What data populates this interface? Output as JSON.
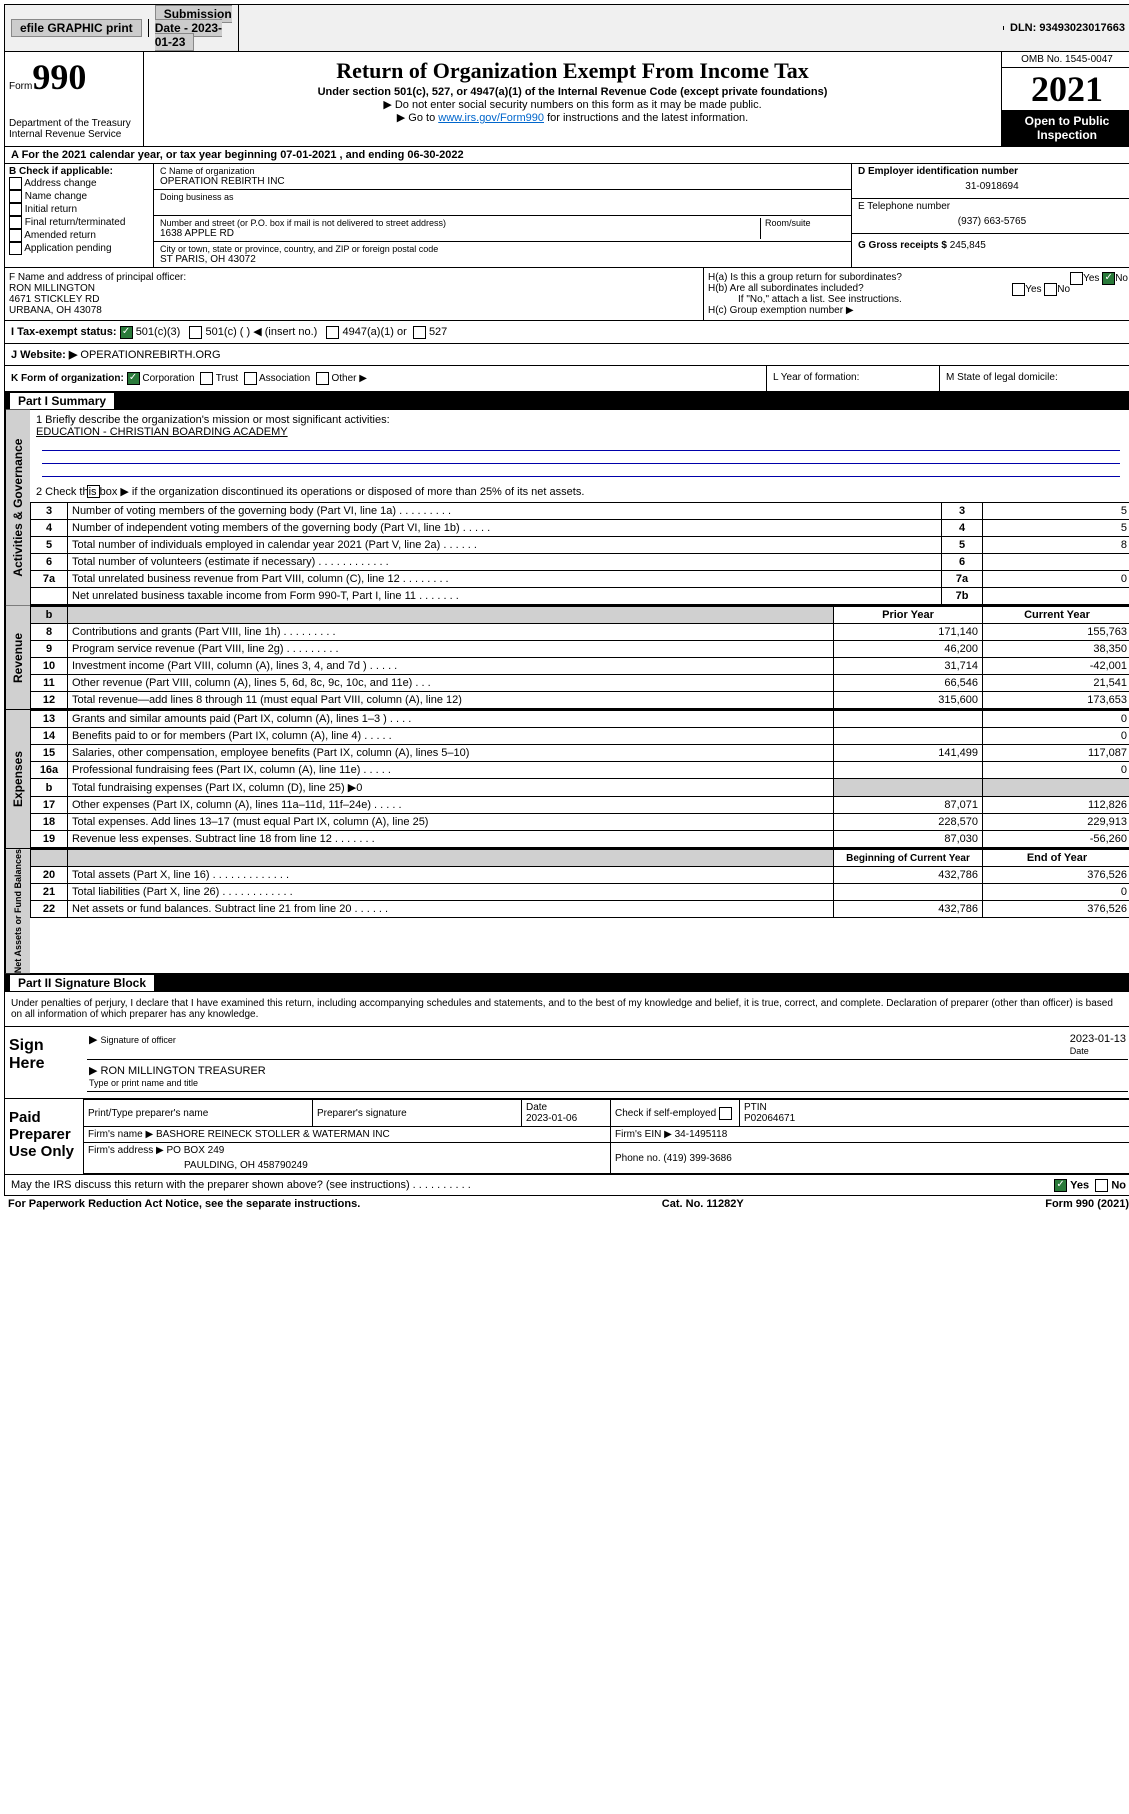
{
  "topbar": {
    "efile": "efile GRAPHIC print",
    "submission_label": "Submission Date - 2023-01-23",
    "dln": "DLN: 93493023017663"
  },
  "header": {
    "form_prefix": "Form",
    "form_number": "990",
    "dept": "Department of the Treasury",
    "irs": "Internal Revenue Service",
    "title": "Return of Organization Exempt From Income Tax",
    "subtitle": "Under section 501(c), 527, or 4947(a)(1) of the Internal Revenue Code (except private foundations)",
    "note1": "▶ Do not enter social security numbers on this form as it may be made public.",
    "note2_pre": "▶ Go to ",
    "note2_link": "www.irs.gov/Form990",
    "note2_post": " for instructions and the latest information.",
    "omb": "OMB No. 1545-0047",
    "year": "2021",
    "open": "Open to Public Inspection"
  },
  "line_a": "A For the 2021 calendar year, or tax year beginning 07-01-2021  , and ending 06-30-2022",
  "col_b": {
    "heading": "B Check if applicable:",
    "items": [
      "Address change",
      "Name change",
      "Initial return",
      "Final return/terminated",
      "Amended return",
      "Application pending"
    ]
  },
  "col_c": {
    "name_label": "C Name of organization",
    "name": "OPERATION REBIRTH INC",
    "dba_label": "Doing business as",
    "dba": "",
    "addr_label": "Number and street (or P.O. box if mail is not delivered to street address)",
    "room_label": "Room/suite",
    "addr": "1638 APPLE RD",
    "city_label": "City or town, state or province, country, and ZIP or foreign postal code",
    "city": "ST PARIS, OH  43072"
  },
  "col_d": {
    "d_label": "D Employer identification number",
    "ein": "31-0918694",
    "e_label": "E Telephone number",
    "phone": "(937) 663-5765",
    "g_label": "G Gross receipts $",
    "gross": "245,845"
  },
  "f_block": {
    "label": "F  Name and address of principal officer:",
    "name": "RON MILLINGTON",
    "addr1": "4671 STICKLEY RD",
    "addr2": "URBANA, OH  43078"
  },
  "h_block": {
    "ha": "H(a)  Is this a group return for subordinates?",
    "hb": "H(b)  Are all subordinates included?",
    "hb_note": "If \"No,\" attach a list. See instructions.",
    "hc": "H(c)  Group exemption number ▶",
    "yes": "Yes",
    "no": "No"
  },
  "i_line": {
    "label": "I   Tax-exempt status:",
    "opt1": "501(c)(3)",
    "opt2": "501(c) (   ) ◀ (insert no.)",
    "opt3": "4947(a)(1) or",
    "opt4": "527"
  },
  "j_line": {
    "label": "J   Website: ▶",
    "value": "OPERATIONREBIRTH.ORG"
  },
  "k_line": {
    "label": "K Form of organization:",
    "opts": [
      "Corporation",
      "Trust",
      "Association",
      "Other ▶"
    ]
  },
  "l_line": "L Year of formation:",
  "m_line": "M State of legal domicile:",
  "part1": {
    "title": "Part I      Summary",
    "q1": "1   Briefly describe the organization's mission or most significant activities:",
    "mission": "EDUCATION - CHRISTIAN BOARDING ACADEMY",
    "q2": "2   Check this box ▶         if the organization discontinued its operations or disposed of more than 25% of its net assets.",
    "rows_gov": [
      {
        "n": "3",
        "t": "Number of voting members of the governing body (Part VI, line 1a)  .    .    .    .    .    .    .    .    .",
        "b": "3",
        "v": "5"
      },
      {
        "n": "4",
        "t": "Number of independent voting members of the governing body (Part VI, line 1b)   .    .    .    .    .",
        "b": "4",
        "v": "5"
      },
      {
        "n": "5",
        "t": "Total number of individuals employed in calendar year 2021 (Part V, line 2a)  .    .    .    .    .    .",
        "b": "5",
        "v": "8"
      },
      {
        "n": "6",
        "t": "Total number of volunteers (estimate if necessary)   .    .    .    .    .    .    .    .    .    .    .    .",
        "b": "6",
        "v": ""
      },
      {
        "n": "7a",
        "t": "Total unrelated business revenue from Part VIII, column (C), line 12   .    .    .    .    .    .    .    .",
        "b": "7a",
        "v": "0"
      },
      {
        "n": "",
        "t": "Net unrelated business taxable income from Form 990-T, Part I, line 11   .    .    .    .    .    .    .",
        "b": "7b",
        "v": ""
      }
    ],
    "col_prior": "Prior Year",
    "col_current": "Current Year",
    "rows_rev": [
      {
        "n": "8",
        "t": "Contributions and grants (Part VIII, line 1h)   .    .    .    .    .    .    .    .    .",
        "p": "171,140",
        "c": "155,763"
      },
      {
        "n": "9",
        "t": "Program service revenue (Part VIII, line 2g)   .    .    .    .    .    .    .    .    .",
        "p": "46,200",
        "c": "38,350"
      },
      {
        "n": "10",
        "t": "Investment income (Part VIII, column (A), lines 3, 4, and 7d )   .    .    .    .    .",
        "p": "31,714",
        "c": "-42,001"
      },
      {
        "n": "11",
        "t": "Other revenue (Part VIII, column (A), lines 5, 6d, 8c, 9c, 10c, and 11e)   .    .    .",
        "p": "66,546",
        "c": "21,541"
      },
      {
        "n": "12",
        "t": "Total revenue—add lines 8 through 11 (must equal Part VIII, column (A), line 12)",
        "p": "315,600",
        "c": "173,653"
      }
    ],
    "rows_exp": [
      {
        "n": "13",
        "t": "Grants and similar amounts paid (Part IX, column (A), lines 1–3 )   .    .    .    .",
        "p": "",
        "c": "0"
      },
      {
        "n": "14",
        "t": "Benefits paid to or for members (Part IX, column (A), line 4)   .    .    .    .    .",
        "p": "",
        "c": "0"
      },
      {
        "n": "15",
        "t": "Salaries, other compensation, employee benefits (Part IX, column (A), lines 5–10)",
        "p": "141,499",
        "c": "117,087"
      },
      {
        "n": "16a",
        "t": "Professional fundraising fees (Part IX, column (A), line 11e)   .    .    .    .    .",
        "p": "",
        "c": "0"
      },
      {
        "n": "b",
        "t": "Total fundraising expenses (Part IX, column (D), line 25) ▶0",
        "p": "shade",
        "c": "shade"
      },
      {
        "n": "17",
        "t": "Other expenses (Part IX, column (A), lines 11a–11d, 11f–24e)   .    .    .    .    .",
        "p": "87,071",
        "c": "112,826"
      },
      {
        "n": "18",
        "t": "Total expenses. Add lines 13–17 (must equal Part IX, column (A), line 25)",
        "p": "228,570",
        "c": "229,913"
      },
      {
        "n": "19",
        "t": "Revenue less expenses. Subtract line 18 from line 12   .    .    .    .    .    .    .",
        "p": "87,030",
        "c": "-56,260"
      }
    ],
    "col_begin": "Beginning of Current Year",
    "col_end": "End of Year",
    "rows_net": [
      {
        "n": "20",
        "t": "Total assets (Part X, line 16)   .    .    .    .    .    .    .    .    .    .    .    .    .",
        "p": "432,786",
        "c": "376,526"
      },
      {
        "n": "21",
        "t": "Total liabilities (Part X, line 26)   .    .    .    .    .    .    .    .    .    .    .    .",
        "p": "",
        "c": "0"
      },
      {
        "n": "22",
        "t": "Net assets or fund balances. Subtract line 21 from line 20   .    .    .    .    .    .",
        "p": "432,786",
        "c": "376,526"
      }
    ]
  },
  "vtabs": {
    "gov": "Activities & Governance",
    "rev": "Revenue",
    "exp": "Expenses",
    "net": "Net Assets or Fund Balances"
  },
  "part2": {
    "title": "Part II     Signature Block",
    "declaration": "Under penalties of perjury, I declare that I have examined this return, including accompanying schedules and statements, and to the best of my knowledge and belief, it is true, correct, and complete. Declaration of preparer (other than officer) is based on all information of which preparer has any knowledge.",
    "sign_here": "Sign Here",
    "sig_officer": "Signature of officer",
    "sig_date": "2023-01-13",
    "date_lbl": "Date",
    "officer_name": "RON MILLINGTON TREASURER",
    "officer_type": "Type or print name and title",
    "paid_label": "Paid Preparer Use Only",
    "prep_name_lbl": "Print/Type preparer's name",
    "prep_sig_lbl": "Preparer's signature",
    "prep_date_lbl": "Date",
    "prep_date": "2023-01-06",
    "prep_check": "Check          if self-employed",
    "ptin_lbl": "PTIN",
    "ptin": "P02064671",
    "firm_name_lbl": "Firm's name     ▶",
    "firm_name": "BASHORE REINECK STOLLER & WATERMAN INC",
    "firm_ein_lbl": "Firm's EIN ▶",
    "firm_ein": "34-1495118",
    "firm_addr_lbl": "Firm's address ▶",
    "firm_addr1": "PO BOX 249",
    "firm_addr2": "PAULDING, OH  458790249",
    "firm_phone_lbl": "Phone no.",
    "firm_phone": "(419) 399-3686",
    "discuss": "May the IRS discuss this return with the preparer shown above? (see instructions)   .    .    .    .    .    .    .    .    .    ."
  },
  "footer": {
    "left": "For Paperwork Reduction Act Notice, see the separate instructions.",
    "mid": "Cat. No. 11282Y",
    "right": "Form 990 (2021)"
  }
}
